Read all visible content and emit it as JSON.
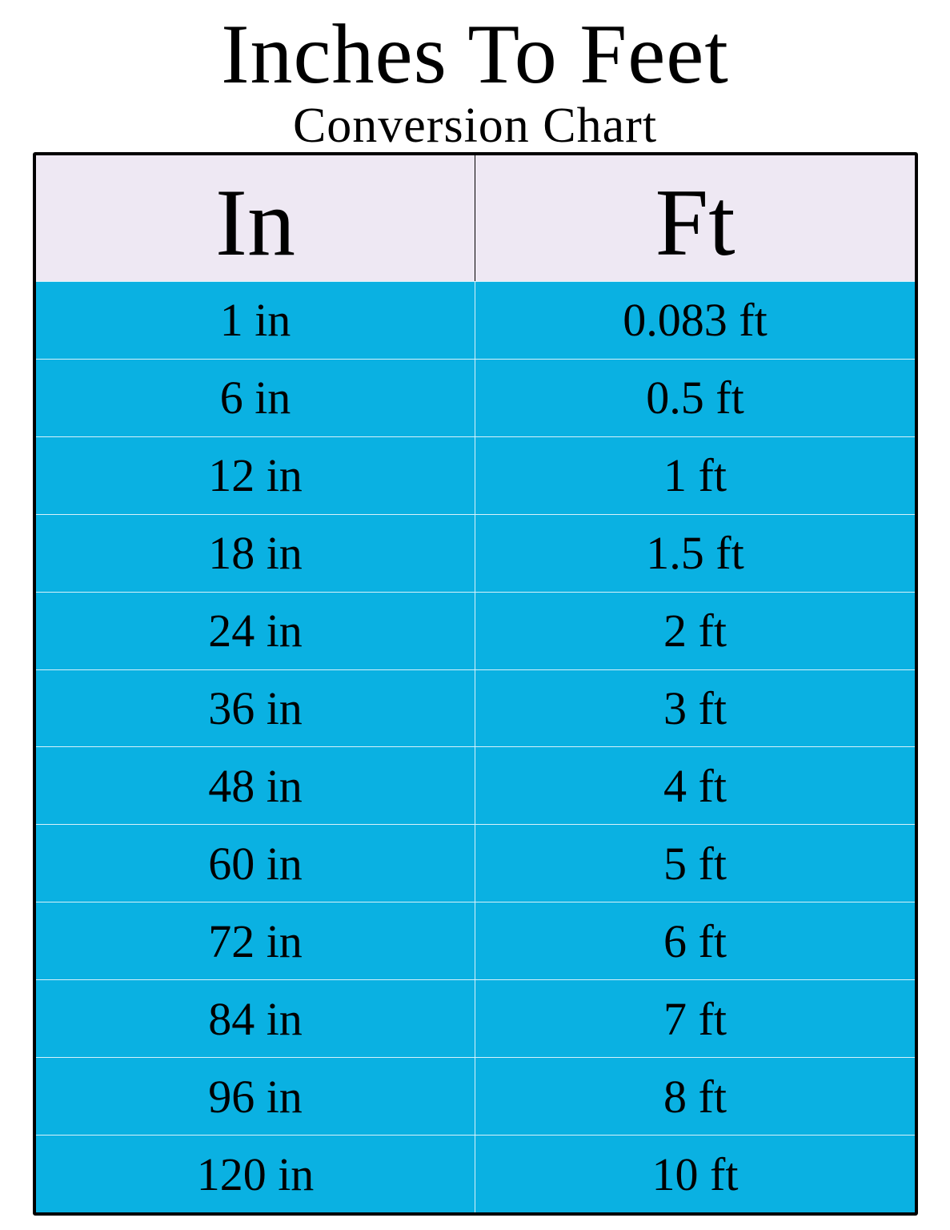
{
  "title": "Inches To Feet",
  "subtitle": "Conversion Chart",
  "colors": {
    "header_bg": "#EEE8F3",
    "row_bg": "#0AB1E2",
    "border": "#000000"
  },
  "chart_data": {
    "type": "table",
    "title": "Inches To Feet",
    "subtitle": "Conversion Chart",
    "columns": [
      "In",
      "Ft"
    ],
    "rows": [
      [
        "1 in",
        "0.083 ft"
      ],
      [
        "6 in",
        "0.5 ft"
      ],
      [
        "12 in",
        "1 ft"
      ],
      [
        "18 in",
        "1.5 ft"
      ],
      [
        "24 in",
        "2 ft"
      ],
      [
        "36 in",
        "3 ft"
      ],
      [
        "48 in",
        "4 ft"
      ],
      [
        "60 in",
        "5 ft"
      ],
      [
        "72 in",
        "6 ft"
      ],
      [
        "84 in",
        "7 ft"
      ],
      [
        "96 in",
        "8 ft"
      ],
      [
        "120 in",
        "10 ft"
      ]
    ]
  }
}
